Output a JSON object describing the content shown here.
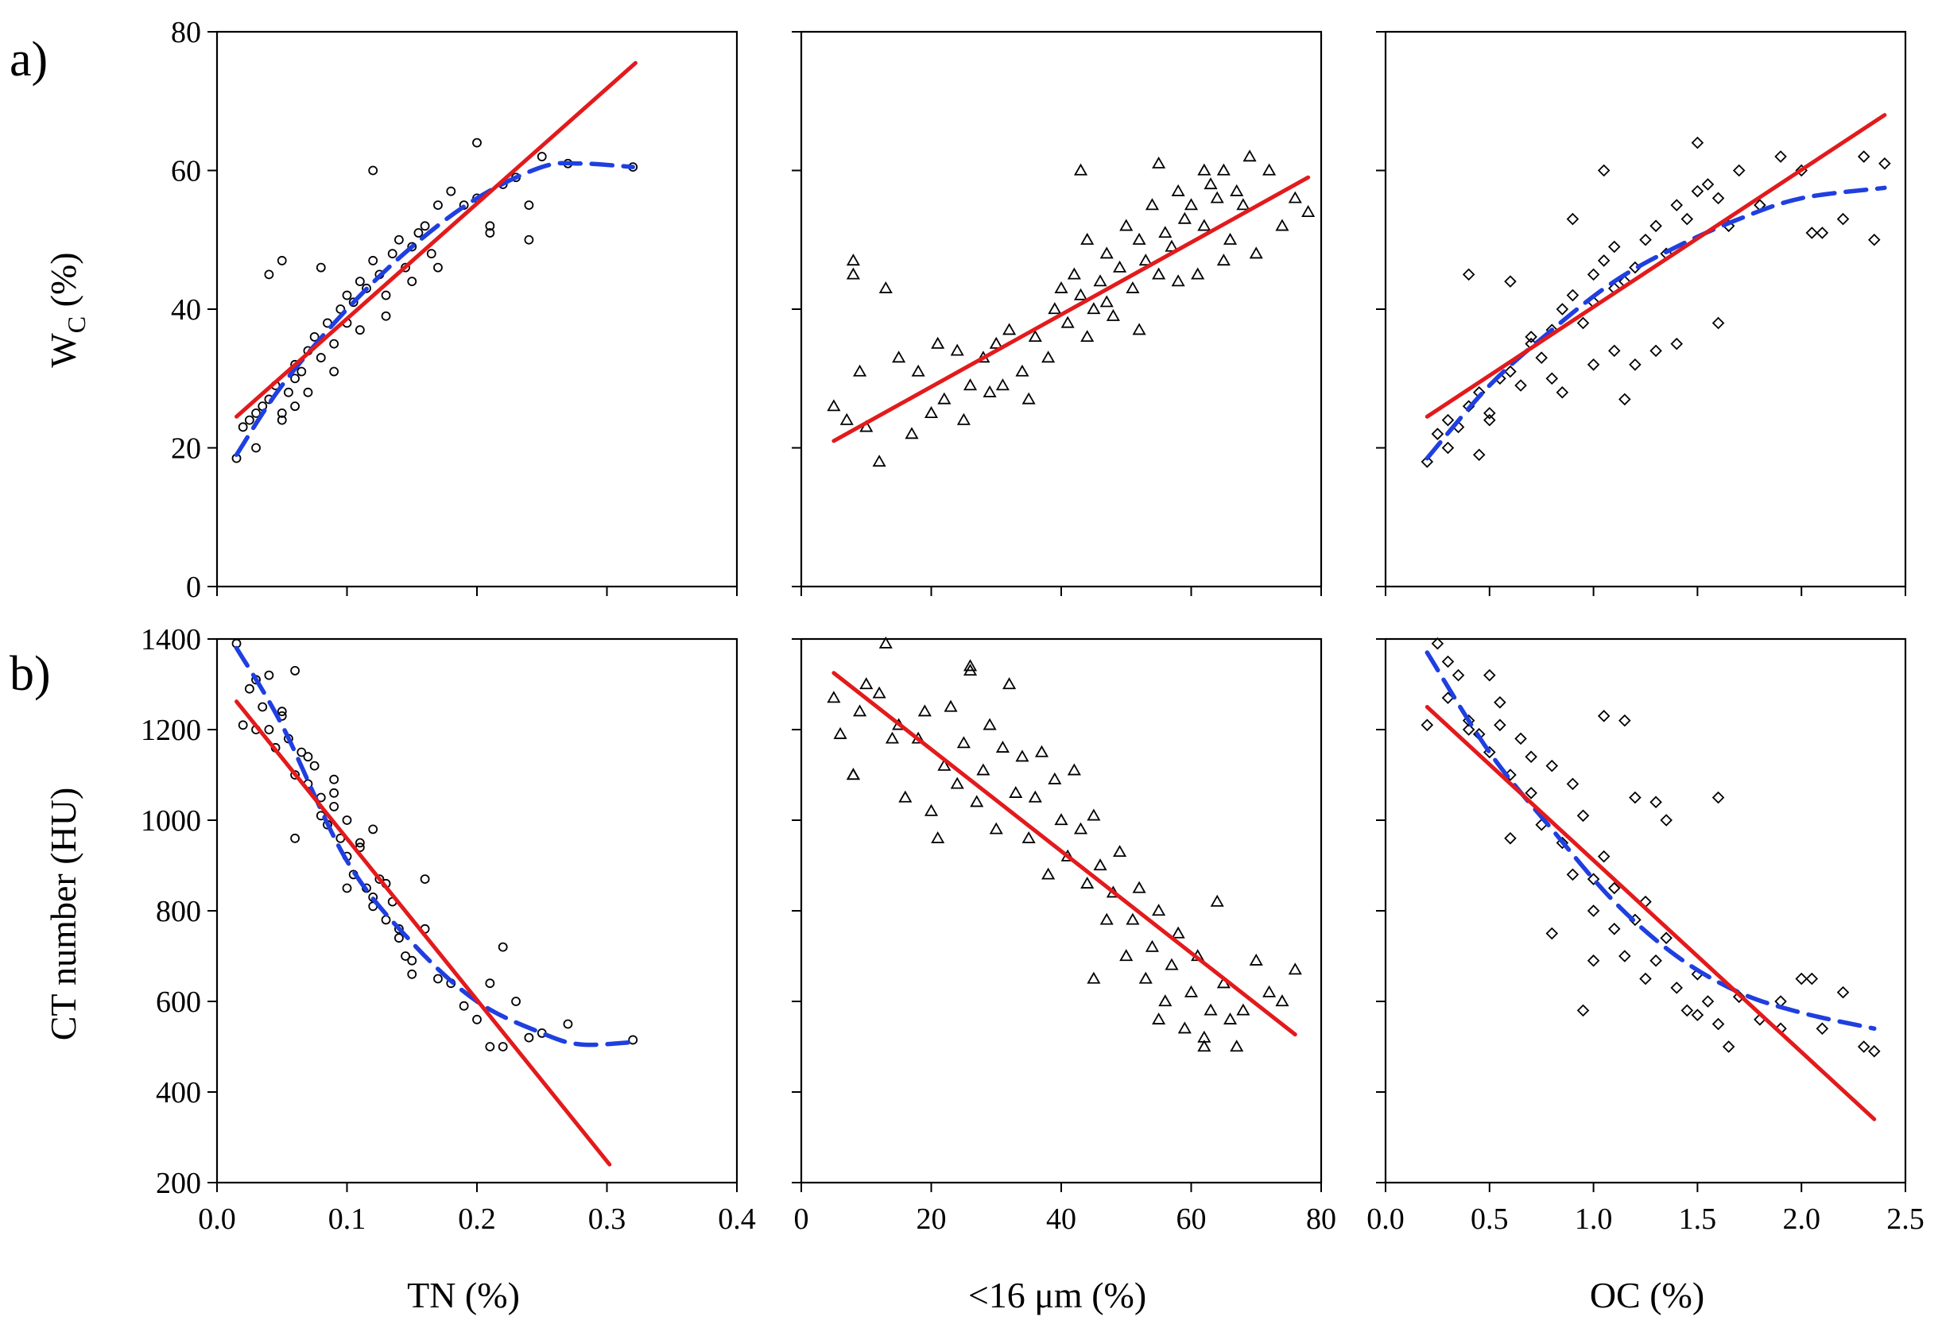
{
  "figure": {
    "row_labels": [
      "a)",
      "b)"
    ],
    "ylabel_top_main": "W",
    "ylabel_top_sub": "C",
    "ylabel_top_unit": " (%)",
    "ylabel_bottom": "CT number (HU)",
    "xlabels": [
      "TN (%)",
      "<16  μm (%)",
      "OC (%)"
    ]
  },
  "colors": {
    "linear_fit": "#e31a1c",
    "nonlinear_fit": "#1f3fe0",
    "points": "#000000"
  },
  "chart_data": [
    {
      "type": "scatter",
      "panel": "a-TN",
      "marker": "circle",
      "xlim": [
        0,
        0.4
      ],
      "ylim": [
        0,
        80
      ],
      "xticks": [
        0.0,
        0.1,
        0.2,
        0.3,
        0.4
      ],
      "xtick_labels": [
        "0.0",
        "0.1",
        "0.2",
        "0.3",
        "0.4"
      ],
      "yticks": [
        0,
        20,
        40,
        60,
        80
      ],
      "ytick_labels": [
        "0",
        "20",
        "40",
        "60",
        "80"
      ],
      "linear_fit": {
        "x": [
          0.015,
          0.322
        ],
        "y": [
          24.5,
          75.5
        ]
      },
      "nonlinear_fit": {
        "x": [
          0.015,
          0.05,
          0.1,
          0.15,
          0.2,
          0.25,
          0.28,
          0.32
        ],
        "y": [
          19,
          29,
          40,
          49,
          56,
          60.5,
          61,
          60.5
        ]
      },
      "points": {
        "x": [
          0.015,
          0.02,
          0.025,
          0.03,
          0.035,
          0.04,
          0.045,
          0.05,
          0.055,
          0.06,
          0.06,
          0.065,
          0.07,
          0.075,
          0.08,
          0.085,
          0.09,
          0.095,
          0.1,
          0.1,
          0.105,
          0.11,
          0.115,
          0.12,
          0.125,
          0.13,
          0.135,
          0.14,
          0.145,
          0.15,
          0.155,
          0.16,
          0.165,
          0.17,
          0.18,
          0.19,
          0.2,
          0.21,
          0.22,
          0.23,
          0.24,
          0.25,
          0.27,
          0.32,
          0.04,
          0.05,
          0.08,
          0.12,
          0.2,
          0.05,
          0.07,
          0.09,
          0.11,
          0.13,
          0.15,
          0.17,
          0.21,
          0.24,
          0.03,
          0.06
        ],
        "y": [
          18.5,
          23,
          24,
          25,
          26,
          27,
          29,
          25,
          28,
          32,
          30,
          31,
          34,
          36,
          33,
          38,
          35,
          40,
          38,
          42,
          41,
          44,
          43,
          47,
          45,
          42,
          48,
          50,
          46,
          49,
          51,
          52,
          48,
          55,
          57,
          55,
          56,
          51,
          58,
          59,
          55,
          62,
          61,
          60.5,
          45,
          47,
          46,
          60,
          64,
          24,
          28,
          31,
          37,
          39,
          44,
          46,
          52,
          50,
          20,
          26
        ]
      }
    },
    {
      "type": "scatter",
      "panel": "a-clay",
      "marker": "triangle",
      "xlim": [
        0,
        80
      ],
      "ylim": [
        0,
        80
      ],
      "xticks": [
        0,
        20,
        40,
        60,
        80
      ],
      "xtick_labels": [
        "0",
        "20",
        "40",
        "60",
        "80"
      ],
      "yticks": [
        0,
        20,
        40,
        60,
        80
      ],
      "linear_fit": {
        "x": [
          5,
          78
        ],
        "y": [
          21,
          59
        ]
      },
      "points": {
        "x": [
          5,
          7,
          8,
          9,
          10,
          12,
          13,
          15,
          17,
          18,
          20,
          21,
          22,
          24,
          25,
          26,
          28,
          29,
          30,
          31,
          32,
          34,
          35,
          36,
          38,
          39,
          40,
          41,
          42,
          43,
          44,
          45,
          46,
          47,
          48,
          49,
          50,
          51,
          52,
          53,
          54,
          55,
          56,
          57,
          58,
          59,
          60,
          61,
          62,
          63,
          64,
          65,
          66,
          67,
          68,
          69,
          70,
          72,
          74,
          76,
          78,
          8,
          43,
          55,
          62,
          44,
          47,
          52,
          58,
          65
        ],
        "y": [
          26,
          24,
          47,
          31,
          23,
          18,
          43,
          33,
          22,
          31,
          25,
          35,
          27,
          34,
          24,
          29,
          33,
          28,
          35,
          29,
          37,
          31,
          27,
          36,
          33,
          40,
          43,
          38,
          45,
          42,
          50,
          40,
          44,
          48,
          39,
          46,
          52,
          43,
          50,
          47,
          55,
          45,
          51,
          49,
          57,
          53,
          55,
          45,
          52,
          58,
          56,
          60,
          50,
          57,
          55,
          62,
          48,
          60,
          52,
          56,
          54,
          45,
          60,
          61,
          60,
          36,
          41,
          37,
          44,
          47
        ]
      }
    },
    {
      "type": "scatter",
      "panel": "a-OC",
      "marker": "diamond",
      "xlim": [
        0,
        2.5
      ],
      "ylim": [
        0,
        80
      ],
      "xticks": [
        0.0,
        0.5,
        1.0,
        1.5,
        2.0,
        2.5
      ],
      "xtick_labels": [
        "0.0",
        "0.5",
        "1.0",
        "1.5",
        "2.0",
        "2.5"
      ],
      "yticks": [
        0,
        20,
        40,
        60,
        80
      ],
      "linear_fit": {
        "x": [
          0.2,
          2.4
        ],
        "y": [
          24.5,
          68
        ]
      },
      "nonlinear_fit": {
        "x": [
          0.2,
          0.5,
          0.8,
          1.1,
          1.4,
          1.7,
          2.0,
          2.4
        ],
        "y": [
          18.5,
          29,
          37,
          44,
          49,
          53,
          56,
          57.5
        ]
      },
      "points": {
        "x": [
          0.2,
          0.25,
          0.3,
          0.35,
          0.4,
          0.45,
          0.5,
          0.55,
          0.6,
          0.65,
          0.7,
          0.75,
          0.8,
          0.85,
          0.9,
          0.95,
          1.0,
          1.0,
          1.05,
          1.1,
          1.1,
          1.15,
          1.2,
          1.25,
          1.3,
          1.35,
          1.4,
          1.45,
          1.5,
          1.55,
          1.6,
          1.65,
          1.7,
          1.8,
          1.9,
          2.0,
          2.1,
          2.2,
          2.3,
          2.35,
          2.4,
          0.4,
          0.6,
          0.9,
          1.05,
          1.2,
          1.4,
          1.6,
          0.3,
          0.5,
          0.7,
          0.85,
          1.0,
          1.15,
          1.3,
          0.45,
          0.8,
          1.1,
          1.5,
          2.05
        ],
        "y": [
          18,
          22,
          24,
          23,
          26,
          28,
          25,
          30,
          31,
          29,
          35,
          33,
          37,
          40,
          42,
          38,
          45,
          41,
          47,
          43,
          49,
          44,
          46,
          50,
          52,
          48,
          55,
          53,
          57,
          58,
          56,
          52,
          60,
          55,
          62,
          60,
          51,
          53,
          62,
          50,
          61,
          45,
          44,
          53,
          60,
          32,
          35,
          38,
          20,
          24,
          36,
          28,
          32,
          27,
          34,
          19,
          30,
          34,
          64,
          51
        ]
      }
    },
    {
      "type": "scatter",
      "panel": "b-TN",
      "marker": "circle",
      "xlim": [
        0,
        0.4
      ],
      "ylim": [
        200,
        1400
      ],
      "xticks": [
        0.0,
        0.1,
        0.2,
        0.3,
        0.4
      ],
      "yticks": [
        200,
        400,
        600,
        800,
        1000,
        1200,
        1400
      ],
      "ytick_labels": [
        "200",
        "400",
        "600",
        "800",
        "1000",
        "1200",
        "1400"
      ],
      "linear_fit": {
        "x": [
          0.015,
          0.302
        ],
        "y": [
          1262,
          240
        ]
      },
      "nonlinear_fit": {
        "x": [
          0.015,
          0.05,
          0.1,
          0.15,
          0.2,
          0.25,
          0.28,
          0.32
        ],
        "y": [
          1380,
          1210,
          910,
          730,
          600,
          530,
          505,
          510
        ]
      },
      "points": {
        "x": [
          0.015,
          0.02,
          0.025,
          0.03,
          0.035,
          0.04,
          0.045,
          0.05,
          0.055,
          0.06,
          0.065,
          0.07,
          0.075,
          0.08,
          0.085,
          0.09,
          0.095,
          0.1,
          0.105,
          0.11,
          0.115,
          0.12,
          0.125,
          0.13,
          0.135,
          0.14,
          0.145,
          0.15,
          0.16,
          0.17,
          0.18,
          0.19,
          0.2,
          0.21,
          0.22,
          0.23,
          0.24,
          0.25,
          0.27,
          0.32,
          0.06,
          0.08,
          0.1,
          0.12,
          0.14,
          0.03,
          0.05,
          0.07,
          0.09,
          0.11,
          0.13,
          0.15,
          0.22,
          0.06,
          0.09,
          0.12,
          0.16,
          0.21,
          0.04,
          0.1
        ],
        "y": [
          1390,
          1210,
          1290,
          1310,
          1250,
          1200,
          1160,
          1240,
          1180,
          1100,
          1150,
          1080,
          1120,
          1050,
          990,
          1030,
          960,
          920,
          880,
          940,
          850,
          810,
          870,
          780,
          820,
          760,
          700,
          690,
          760,
          650,
          640,
          590,
          560,
          640,
          720,
          600,
          520,
          530,
          550,
          515,
          960,
          1010,
          1000,
          830,
          740,
          1200,
          1230,
          1140,
          1060,
          950,
          860,
          660,
          500,
          1330,
          1090,
          980,
          870,
          500,
          1320,
          850
        ]
      }
    },
    {
      "type": "scatter",
      "panel": "b-clay",
      "marker": "triangle",
      "xlim": [
        0,
        80
      ],
      "ylim": [
        200,
        1400
      ],
      "xticks": [
        0,
        20,
        40,
        60,
        80
      ],
      "yticks": [
        200,
        400,
        600,
        800,
        1000,
        1200,
        1400
      ],
      "linear_fit": {
        "x": [
          5,
          76
        ],
        "y": [
          1325,
          527
        ]
      },
      "points": {
        "x": [
          5,
          6,
          8,
          9,
          10,
          12,
          13,
          15,
          16,
          18,
          19,
          20,
          21,
          22,
          23,
          24,
          25,
          26,
          27,
          28,
          29,
          30,
          31,
          32,
          33,
          34,
          35,
          36,
          37,
          38,
          39,
          40,
          41,
          42,
          43,
          44,
          45,
          46,
          47,
          48,
          49,
          50,
          51,
          52,
          53,
          54,
          55,
          56,
          57,
          58,
          59,
          60,
          61,
          62,
          63,
          64,
          65,
          66,
          67,
          68,
          70,
          72,
          74,
          76,
          8,
          14,
          26,
          45,
          55,
          62
        ],
        "y": [
          1270,
          1190,
          1100,
          1240,
          1300,
          1280,
          1390,
          1210,
          1050,
          1180,
          1240,
          1020,
          960,
          1120,
          1250,
          1080,
          1170,
          1340,
          1040,
          1110,
          1210,
          980,
          1160,
          1300,
          1060,
          1140,
          960,
          1050,
          1150,
          880,
          1090,
          1000,
          920,
          1110,
          980,
          860,
          1010,
          900,
          780,
          840,
          930,
          700,
          780,
          850,
          650,
          720,
          800,
          600,
          680,
          750,
          540,
          620,
          700,
          500,
          580,
          820,
          640,
          560,
          500,
          580,
          690,
          620,
          600,
          670,
          1100,
          1180,
          1330,
          650,
          560,
          520
        ]
      }
    },
    {
      "type": "scatter",
      "panel": "b-OC",
      "marker": "diamond",
      "xlim": [
        0,
        2.5
      ],
      "ylim": [
        200,
        1400
      ],
      "xticks": [
        0.0,
        0.5,
        1.0,
        1.5,
        2.0,
        2.5
      ],
      "yticks": [
        200,
        400,
        600,
        800,
        1000,
        1200,
        1400
      ],
      "linear_fit": {
        "x": [
          0.2,
          2.35
        ],
        "y": [
          1250,
          340
        ]
      },
      "nonlinear_fit": {
        "x": [
          0.2,
          0.5,
          0.8,
          1.1,
          1.4,
          1.7,
          2.0,
          2.35
        ],
        "y": [
          1370,
          1150,
          980,
          820,
          700,
          620,
          575,
          540
        ]
      },
      "points": {
        "x": [
          0.2,
          0.25,
          0.3,
          0.35,
          0.4,
          0.45,
          0.5,
          0.55,
          0.6,
          0.65,
          0.7,
          0.75,
          0.8,
          0.85,
          0.9,
          0.95,
          1.0,
          1.0,
          1.05,
          1.1,
          1.1,
          1.15,
          1.2,
          1.25,
          1.3,
          1.35,
          1.4,
          1.45,
          1.5,
          1.55,
          1.6,
          1.65,
          1.7,
          1.8,
          1.9,
          2.0,
          2.1,
          2.2,
          2.3,
          2.35,
          0.3,
          0.5,
          0.7,
          0.9,
          1.05,
          1.2,
          1.35,
          1.6,
          0.4,
          0.6,
          0.8,
          1.0,
          1.15,
          1.3,
          0.55,
          0.95,
          1.25,
          1.5,
          1.9,
          2.05
        ],
        "y": [
          1210,
          1390,
          1270,
          1320,
          1220,
          1190,
          1150,
          1260,
          1100,
          1180,
          1060,
          990,
          1120,
          950,
          880,
          1010,
          870,
          800,
          920,
          760,
          850,
          700,
          780,
          820,
          690,
          740,
          630,
          580,
          660,
          600,
          550,
          500,
          610,
          560,
          600,
          650,
          540,
          620,
          500,
          490,
          1350,
          1320,
          1140,
          1080,
          1230,
          1050,
          1000,
          1050,
          1200,
          960,
          750,
          690,
          1220,
          1040,
          1210,
          580,
          650,
          570,
          540,
          650
        ]
      }
    }
  ]
}
